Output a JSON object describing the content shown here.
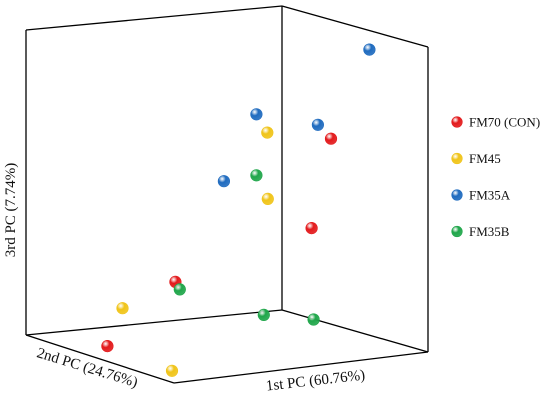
{
  "chart_data": {
    "type": "scatter",
    "projection": "3d",
    "title": "",
    "axes": {
      "x": {
        "label": "1st PC (60.76%)"
      },
      "y": {
        "label": "2nd PC (24.76%)"
      },
      "z": {
        "label": "3rd PC (7.74%)"
      }
    },
    "legend_position": "right",
    "grid": false,
    "series": [
      {
        "name": "FM70 (CON)",
        "color": "#e31a1c",
        "points": [
          {
            "x": 0.7,
            "y": 0.85,
            "z": 0.72
          },
          {
            "x": 1.0,
            "y": 0.2,
            "z": 0.3
          },
          {
            "x": 0.15,
            "y": 0.75,
            "z": 0.28
          },
          {
            "x": 0.0,
            "y": 0.55,
            "z": 0.05
          }
        ]
      },
      {
        "name": "FM45",
        "color": "#f0c419",
        "points": [
          {
            "x": 0.48,
            "y": 0.8,
            "z": 0.75
          },
          {
            "x": 0.8,
            "y": 0.25,
            "z": 0.42
          },
          {
            "x": 0.03,
            "y": 0.6,
            "z": 0.18
          },
          {
            "x": 0.05,
            "y": 0.9,
            "z": 0.02
          }
        ]
      },
      {
        "name": "FM35A",
        "color": "#1f6bbf",
        "points": [
          {
            "x": 0.85,
            "y": 0.85,
            "z": 1.0
          },
          {
            "x": 0.62,
            "y": 0.9,
            "z": 0.78
          },
          {
            "x": 0.38,
            "y": 0.68,
            "z": 0.58
          },
          {
            "x": 0.9,
            "y": 0.0,
            "z": 0.65
          }
        ]
      },
      {
        "name": "FM35B",
        "color": "#1fa64a",
        "points": [
          {
            "x": 0.9,
            "y": 0.0,
            "z": 0.45
          },
          {
            "x": 0.15,
            "y": 0.78,
            "z": 0.26
          },
          {
            "x": 0.95,
            "y": 0.3,
            "z": 0.02
          },
          {
            "x": 0.9,
            "y": 0.05,
            "z": 0.0
          }
        ]
      }
    ]
  }
}
